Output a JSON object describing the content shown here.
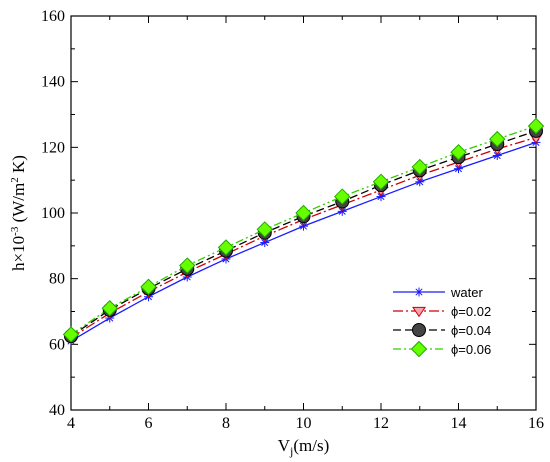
{
  "chart_data": {
    "type": "line",
    "title": "",
    "xlabel": "Vj(m/s)",
    "xlabel_main": "V",
    "xlabel_sub": "j",
    "xlabel_rest": "(m/s)",
    "ylabel": "h×10-3 (W/m2 K)",
    "ylabel_a": "h×10",
    "ylabel_exp": "-3",
    "ylabel_b": " (W/m",
    "ylabel_exp2": "2",
    "ylabel_c": " K)",
    "xlim": [
      4,
      16
    ],
    "ylim": [
      40,
      160
    ],
    "xticks": [
      4,
      6,
      8,
      10,
      12,
      14,
      16
    ],
    "yticks": [
      40,
      60,
      80,
      100,
      120,
      140,
      160
    ],
    "grid": false,
    "legend_position": "right, lower-middle",
    "x": [
      4,
      5,
      6,
      7,
      8,
      9,
      10,
      11,
      12,
      13,
      14,
      15,
      16
    ],
    "series": [
      {
        "name": "water",
        "color": "#1a1aff",
        "dash": "solid",
        "marker": "asterisk",
        "values": [
          61,
          68,
          74.5,
          80.5,
          86,
          91,
          96,
          100.5,
          105,
          109.5,
          113.5,
          117.5,
          121.5
        ]
      },
      {
        "name": "ϕ=0.02",
        "color": "#cc0000",
        "dash": "dash-dot",
        "marker": "triangle-down",
        "values": [
          62,
          69.5,
          76,
          82,
          87.5,
          93,
          98,
          102.5,
          107,
          111.5,
          115.5,
          119.5,
          123
        ]
      },
      {
        "name": "ϕ=0.04",
        "color": "#000000",
        "dash": "dashed",
        "marker": "circle",
        "values": [
          62.5,
          70.5,
          77,
          83,
          88.5,
          94,
          99,
          103.5,
          108.5,
          113,
          117,
          121,
          125
        ]
      },
      {
        "name": "ϕ=0.06",
        "color": "#33cc00",
        "dash": "dash-dot-dot",
        "marker": "diamond",
        "values": [
          63,
          71,
          77.5,
          84,
          89.5,
          95,
          100,
          105,
          109.5,
          114,
          118.5,
          122.5,
          126.5
        ]
      }
    ]
  }
}
